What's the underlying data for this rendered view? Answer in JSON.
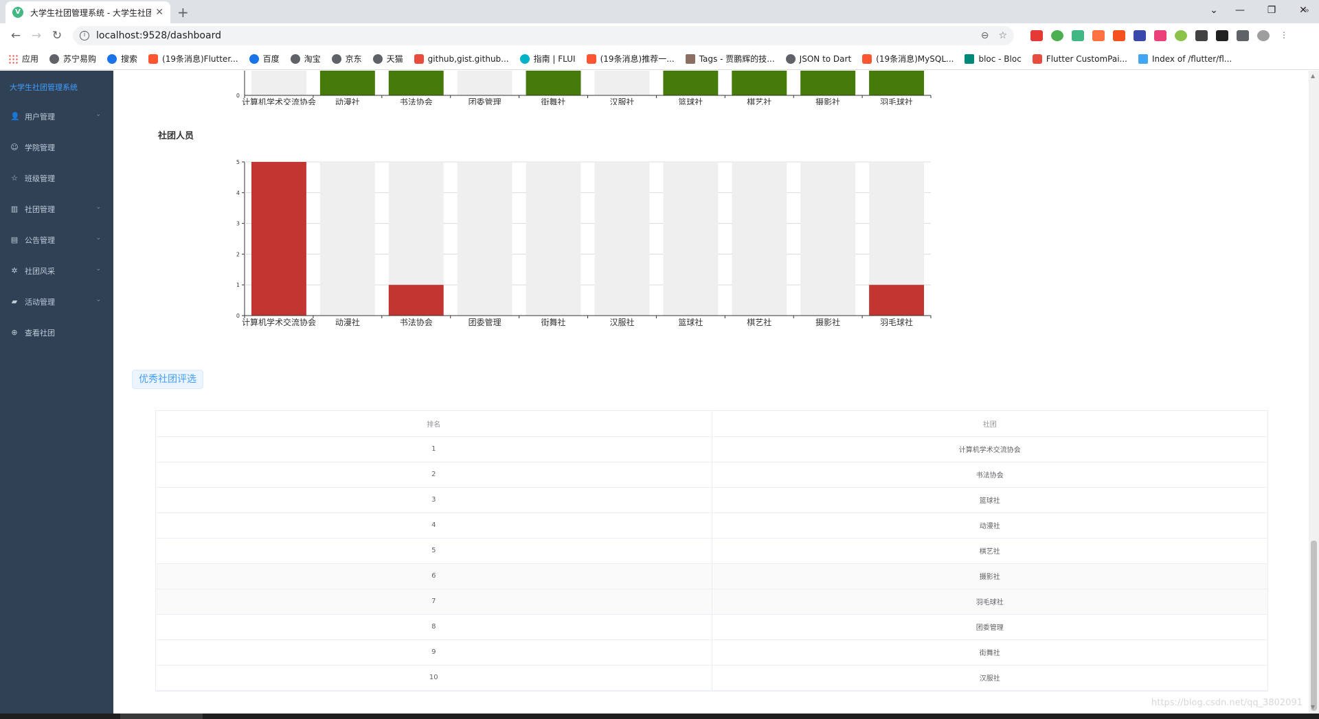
{
  "browser": {
    "tab_title": "大学生社团管理系统 - 大学生社团",
    "url": "localhost:9528/dashboard",
    "bookmarks": [
      {
        "label": "应用",
        "icon": "grid"
      },
      {
        "label": "苏宁易购",
        "icon": "globe"
      },
      {
        "label": "搜索",
        "icon": "blue"
      },
      {
        "label": "(19条消息)Flutter...",
        "icon": "csdn"
      },
      {
        "label": "百度",
        "icon": "blue"
      },
      {
        "label": "淘宝",
        "icon": "globe"
      },
      {
        "label": "京东",
        "icon": "globe"
      },
      {
        "label": "天猫",
        "icon": "globe"
      },
      {
        "label": "github,gist.github...",
        "icon": "red"
      },
      {
        "label": "指南 | FLUI",
        "icon": "cyan"
      },
      {
        "label": "(19条消息)推荐一...",
        "icon": "csdn"
      },
      {
        "label": "Tags - 贾鹏辉的技...",
        "icon": "pic"
      },
      {
        "label": "JSON to Dart",
        "icon": "globe"
      },
      {
        "label": "(19条消息)MySQL...",
        "icon": "csdn"
      },
      {
        "label": "bloc - Bloc",
        "icon": "hex"
      },
      {
        "label": "Flutter CustomPai...",
        "icon": "red"
      },
      {
        "label": "Index of /flutter/fl...",
        "icon": "flutter"
      }
    ]
  },
  "sidebar": {
    "brand": "大学生社团管理系统",
    "items": [
      {
        "label": "用户管理",
        "icon": "user-icon",
        "glyph": "👤",
        "has_sub": true
      },
      {
        "label": "学院管理",
        "icon": "person-outline-icon",
        "glyph": "☺",
        "has_sub": false
      },
      {
        "label": "班级管理",
        "icon": "star-icon",
        "glyph": "☆",
        "has_sub": false
      },
      {
        "label": "社团管理",
        "icon": "office-icon",
        "glyph": "▥",
        "has_sub": true
      },
      {
        "label": "公告管理",
        "icon": "document-icon",
        "glyph": "▤",
        "has_sub": true
      },
      {
        "label": "社团风采",
        "icon": "sun-icon",
        "glyph": "✲",
        "has_sub": true
      },
      {
        "label": "活动管理",
        "icon": "truck-icon",
        "glyph": "▰",
        "has_sub": true
      },
      {
        "label": "查看社团",
        "icon": "plus-circle-icon",
        "glyph": "⊕",
        "has_sub": false
      }
    ]
  },
  "chart_data": [
    {
      "type": "bar",
      "title": "",
      "categories": [
        "计算机学术交流协会",
        "动漫社",
        "书法协会",
        "团委管理",
        "街舞社",
        "汉服社",
        "篮球社",
        "棋艺社",
        "摄影社",
        "羽毛球社"
      ],
      "series": [
        {
          "values": [
            0,
            1,
            1,
            0,
            1,
            0,
            1,
            1,
            1,
            1
          ],
          "color": "#447b0a"
        }
      ],
      "background_bar_color": "#efefef",
      "ylim": [
        0,
        1
      ],
      "visible_tick_labels": [
        "0"
      ],
      "note_visible": "scrolled; only bottom portion of chart visible"
    },
    {
      "type": "bar",
      "title": "社团人员",
      "categories": [
        "计算机学术交流协会",
        "动漫社",
        "书法协会",
        "团委管理",
        "街舞社",
        "汉服社",
        "篮球社",
        "棋艺社",
        "摄影社",
        "羽毛球社"
      ],
      "series": [
        {
          "values": [
            5,
            0,
            1,
            0,
            0,
            0,
            0,
            0,
            0,
            1
          ],
          "color": "#c23531"
        }
      ],
      "background_bar_color": "#efefef",
      "ylim": [
        0,
        5
      ],
      "yticks": [
        0,
        1,
        2,
        3,
        4,
        5
      ],
      "grid": true
    }
  ],
  "ranking": {
    "tag": "优秀社团评选",
    "headers": [
      "排名",
      "社团"
    ],
    "rows": [
      [
        "1",
        "计算机学术交流协会"
      ],
      [
        "2",
        "书法协会"
      ],
      [
        "3",
        "篮球社"
      ],
      [
        "4",
        "动漫社"
      ],
      [
        "5",
        "棋艺社"
      ],
      [
        "6",
        "摄影社"
      ],
      [
        "7",
        "羽毛球社"
      ],
      [
        "8",
        "团委管理"
      ],
      [
        "9",
        "街舞社"
      ],
      [
        "10",
        "汉服社"
      ]
    ]
  },
  "watermark": "https://blog.csdn.net/qq_3802091"
}
